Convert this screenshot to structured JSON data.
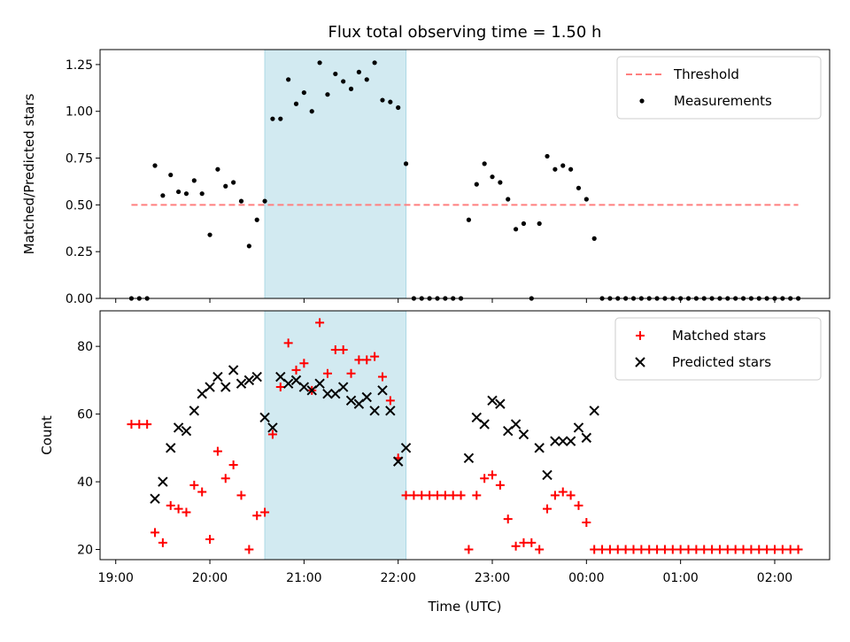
{
  "chart_data": {
    "title": "Flux total observing time = 1.50 h",
    "shaded_interval": [
      "20:35",
      "22:05"
    ],
    "shade_color": "#add8e6",
    "panels": [
      {
        "type": "scatter",
        "ylabel": "Matched/Predicted stars",
        "ylim": [
          0,
          1.33
        ],
        "yticks": [
          "0.00",
          "0.25",
          "0.50",
          "0.75",
          "1.00",
          "1.25"
        ],
        "ytick_values": [
          0,
          0.25,
          0.5,
          0.75,
          1.0,
          1.25
        ],
        "legend_position": "top-right",
        "series": [
          {
            "name": "Threshold",
            "kind": "dashed-line",
            "color": "#ff7f7f",
            "x": [
              "19:10",
              "02:15"
            ],
            "values": [
              0.5,
              0.5
            ]
          },
          {
            "name": "Measurements",
            "kind": "dots",
            "color": "#000000",
            "points": [
              [
                "19:10",
                0
              ],
              [
                "19:15",
                0
              ],
              [
                "19:20",
                0
              ],
              [
                "19:25",
                0.71
              ],
              [
                "19:30",
                0.55
              ],
              [
                "19:35",
                0.66
              ],
              [
                "19:40",
                0.57
              ],
              [
                "19:45",
                0.56
              ],
              [
                "19:50",
                0.63
              ],
              [
                "19:55",
                0.56
              ],
              [
                "20:00",
                0.34
              ],
              [
                "20:05",
                0.69
              ],
              [
                "20:10",
                0.6
              ],
              [
                "20:15",
                0.62
              ],
              [
                "20:20",
                0.52
              ],
              [
                "20:25",
                0.28
              ],
              [
                "20:30",
                0.42
              ],
              [
                "20:35",
                0.52
              ],
              [
                "20:40",
                0.96
              ],
              [
                "20:45",
                0.96
              ],
              [
                "20:50",
                1.17
              ],
              [
                "20:55",
                1.04
              ],
              [
                "21:00",
                1.1
              ],
              [
                "21:05",
                1.0
              ],
              [
                "21:10",
                1.26
              ],
              [
                "21:15",
                1.09
              ],
              [
                "21:20",
                1.2
              ],
              [
                "21:25",
                1.16
              ],
              [
                "21:30",
                1.12
              ],
              [
                "21:35",
                1.21
              ],
              [
                "21:40",
                1.17
              ],
              [
                "21:45",
                1.26
              ],
              [
                "21:50",
                1.06
              ],
              [
                "21:55",
                1.05
              ],
              [
                "22:00",
                1.02
              ],
              [
                "22:05",
                0.72
              ],
              [
                "22:10",
                0
              ],
              [
                "22:15",
                0
              ],
              [
                "22:20",
                0
              ],
              [
                "22:25",
                0
              ],
              [
                "22:30",
                0
              ],
              [
                "22:35",
                0
              ],
              [
                "22:40",
                0
              ],
              [
                "22:45",
                0.42
              ],
              [
                "22:50",
                0.61
              ],
              [
                "22:55",
                0.72
              ],
              [
                "23:00",
                0.65
              ],
              [
                "23:05",
                0.62
              ],
              [
                "23:10",
                0.53
              ],
              [
                "23:15",
                0.37
              ],
              [
                "23:20",
                0.4
              ],
              [
                "23:25",
                0
              ],
              [
                "23:30",
                0.4
              ],
              [
                "23:35",
                0.76
              ],
              [
                "23:40",
                0.69
              ],
              [
                "23:45",
                0.71
              ],
              [
                "23:50",
                0.69
              ],
              [
                "23:55",
                0.59
              ],
              [
                "00:00",
                0.53
              ],
              [
                "00:05",
                0.32
              ],
              [
                "00:10",
                0
              ],
              [
                "00:15",
                0
              ],
              [
                "00:20",
                0
              ],
              [
                "00:25",
                0
              ],
              [
                "00:30",
                0
              ],
              [
                "00:35",
                0
              ],
              [
                "00:40",
                0
              ],
              [
                "00:45",
                0
              ],
              [
                "00:50",
                0
              ],
              [
                "00:55",
                0
              ],
              [
                "01:00",
                0
              ],
              [
                "01:05",
                0
              ],
              [
                "01:10",
                0
              ],
              [
                "01:15",
                0
              ],
              [
                "01:20",
                0
              ],
              [
                "01:25",
                0
              ],
              [
                "01:30",
                0
              ],
              [
                "01:35",
                0
              ],
              [
                "01:40",
                0
              ],
              [
                "01:45",
                0
              ],
              [
                "01:50",
                0
              ],
              [
                "01:55",
                0
              ],
              [
                "02:00",
                0
              ],
              [
                "02:05",
                0
              ],
              [
                "02:10",
                0
              ],
              [
                "02:15",
                0
              ]
            ]
          }
        ]
      },
      {
        "type": "scatter",
        "ylabel": "Count",
        "xlabel": "Time (UTC)",
        "ylim": [
          17,
          90.5
        ],
        "yticks": [
          "20",
          "40",
          "60",
          "80"
        ],
        "ytick_values": [
          20,
          40,
          60,
          80
        ],
        "xlim": [
          "18:50",
          "02:35"
        ],
        "xticks": [
          "19:00",
          "20:00",
          "21:00",
          "22:00",
          "23:00",
          "00:00",
          "01:00",
          "02:00"
        ],
        "legend_position": "top-right",
        "series": [
          {
            "name": "Matched stars",
            "kind": "plus",
            "color": "#ff0000",
            "points": [
              [
                "19:10",
                57
              ],
              [
                "19:15",
                57
              ],
              [
                "19:20",
                57
              ],
              [
                "19:25",
                25
              ],
              [
                "19:30",
                22
              ],
              [
                "19:35",
                33
              ],
              [
                "19:40",
                32
              ],
              [
                "19:45",
                31
              ],
              [
                "19:50",
                39
              ],
              [
                "19:55",
                37
              ],
              [
                "20:00",
                23
              ],
              [
                "20:05",
                49
              ],
              [
                "20:10",
                41
              ],
              [
                "20:15",
                45
              ],
              [
                "20:20",
                36
              ],
              [
                "20:25",
                20
              ],
              [
                "20:30",
                30
              ],
              [
                "20:35",
                31
              ],
              [
                "20:40",
                54
              ],
              [
                "20:45",
                68
              ],
              [
                "20:50",
                81
              ],
              [
                "20:55",
                73
              ],
              [
                "21:00",
                75
              ],
              [
                "21:05",
                67
              ],
              [
                "21:10",
                87
              ],
              [
                "21:15",
                72
              ],
              [
                "21:20",
                79
              ],
              [
                "21:25",
                79
              ],
              [
                "21:30",
                72
              ],
              [
                "21:35",
                76
              ],
              [
                "21:40",
                76
              ],
              [
                "21:45",
                77
              ],
              [
                "21:50",
                71
              ],
              [
                "21:55",
                64
              ],
              [
                "22:00",
                47
              ],
              [
                "22:05",
                36
              ],
              [
                "22:10",
                36
              ],
              [
                "22:15",
                36
              ],
              [
                "22:20",
                36
              ],
              [
                "22:25",
                36
              ],
              [
                "22:30",
                36
              ],
              [
                "22:35",
                36
              ],
              [
                "22:40",
                36
              ],
              [
                "22:45",
                20
              ],
              [
                "22:50",
                36
              ],
              [
                "22:55",
                41
              ],
              [
                "23:00",
                42
              ],
              [
                "23:05",
                39
              ],
              [
                "23:10",
                29
              ],
              [
                "23:15",
                21
              ],
              [
                "23:20",
                22
              ],
              [
                "23:25",
                22
              ],
              [
                "23:30",
                20
              ],
              [
                "23:35",
                32
              ],
              [
                "23:40",
                36
              ],
              [
                "23:45",
                37
              ],
              [
                "23:50",
                36
              ],
              [
                "23:55",
                33
              ],
              [
                "00:00",
                28
              ],
              [
                "00:05",
                20
              ],
              [
                "00:10",
                20
              ],
              [
                "00:15",
                20
              ],
              [
                "00:20",
                20
              ],
              [
                "00:25",
                20
              ],
              [
                "00:30",
                20
              ],
              [
                "00:35",
                20
              ],
              [
                "00:40",
                20
              ],
              [
                "00:45",
                20
              ],
              [
                "00:50",
                20
              ],
              [
                "00:55",
                20
              ],
              [
                "01:00",
                20
              ],
              [
                "01:05",
                20
              ],
              [
                "01:10",
                20
              ],
              [
                "01:15",
                20
              ],
              [
                "01:20",
                20
              ],
              [
                "01:25",
                20
              ],
              [
                "01:30",
                20
              ],
              [
                "01:35",
                20
              ],
              [
                "01:40",
                20
              ],
              [
                "01:45",
                20
              ],
              [
                "01:50",
                20
              ],
              [
                "01:55",
                20
              ],
              [
                "02:00",
                20
              ],
              [
                "02:05",
                20
              ],
              [
                "02:10",
                20
              ],
              [
                "02:15",
                20
              ]
            ]
          },
          {
            "name": "Predicted stars",
            "kind": "cross",
            "color": "#000000",
            "points": [
              [
                "19:25",
                35
              ],
              [
                "19:30",
                40
              ],
              [
                "19:35",
                50
              ],
              [
                "19:40",
                56
              ],
              [
                "19:45",
                55
              ],
              [
                "19:50",
                61
              ],
              [
                "19:55",
                66
              ],
              [
                "20:00",
                68
              ],
              [
                "20:05",
                71
              ],
              [
                "20:10",
                68
              ],
              [
                "20:15",
                73
              ],
              [
                "20:20",
                69
              ],
              [
                "20:25",
                70
              ],
              [
                "20:30",
                71
              ],
              [
                "20:35",
                59
              ],
              [
                "20:40",
                56
              ],
              [
                "20:45",
                71
              ],
              [
                "20:50",
                69
              ],
              [
                "20:55",
                70
              ],
              [
                "21:00",
                68
              ],
              [
                "21:05",
                67
              ],
              [
                "21:10",
                69
              ],
              [
                "21:15",
                66
              ],
              [
                "21:20",
                66
              ],
              [
                "21:25",
                68
              ],
              [
                "21:30",
                64
              ],
              [
                "21:35",
                63
              ],
              [
                "21:40",
                65
              ],
              [
                "21:45",
                61
              ],
              [
                "21:50",
                67
              ],
              [
                "21:55",
                61
              ],
              [
                "22:00",
                46
              ],
              [
                "22:05",
                50
              ],
              [
                "22:45",
                47
              ],
              [
                "22:50",
                59
              ],
              [
                "22:55",
                57
              ],
              [
                "23:00",
                64
              ],
              [
                "23:05",
                63
              ],
              [
                "23:10",
                55
              ],
              [
                "23:15",
                57
              ],
              [
                "23:20",
                54
              ],
              [
                "23:30",
                50
              ],
              [
                "23:35",
                42
              ],
              [
                "23:40",
                52
              ],
              [
                "23:45",
                52
              ],
              [
                "23:50",
                52
              ],
              [
                "23:55",
                56
              ],
              [
                "00:00",
                53
              ],
              [
                "00:05",
                61
              ]
            ]
          }
        ]
      }
    ]
  }
}
